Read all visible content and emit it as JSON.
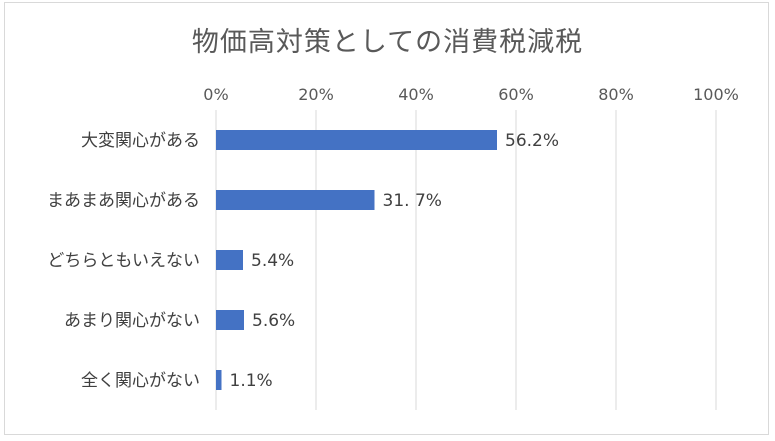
{
  "chart_data": {
    "type": "bar",
    "orientation": "horizontal",
    "title": "物価高対策としての消費税減税",
    "categories": [
      "大変関心がある",
      "まあまあ関心がある",
      "どちらともいえない",
      "あまり関心がない",
      "全く関心がない"
    ],
    "values": [
      56.2,
      31.7,
      5.4,
      5.6,
      1.1
    ],
    "data_labels": [
      "56.2%",
      "31. 7%",
      "5.4%",
      "5.6%",
      "1.1%"
    ],
    "x_ticks": [
      0,
      20,
      40,
      60,
      80,
      100
    ],
    "x_tick_labels": [
      "0%",
      "20%",
      "40%",
      "60%",
      "80%",
      "100%"
    ],
    "xlim": [
      0,
      100
    ],
    "x_axis_position": "top",
    "grid": true,
    "legend": "none",
    "colors": {
      "bar": "#4472c4",
      "grid": "#d9d9d9",
      "text": "#404040",
      "title": "#595959"
    }
  }
}
